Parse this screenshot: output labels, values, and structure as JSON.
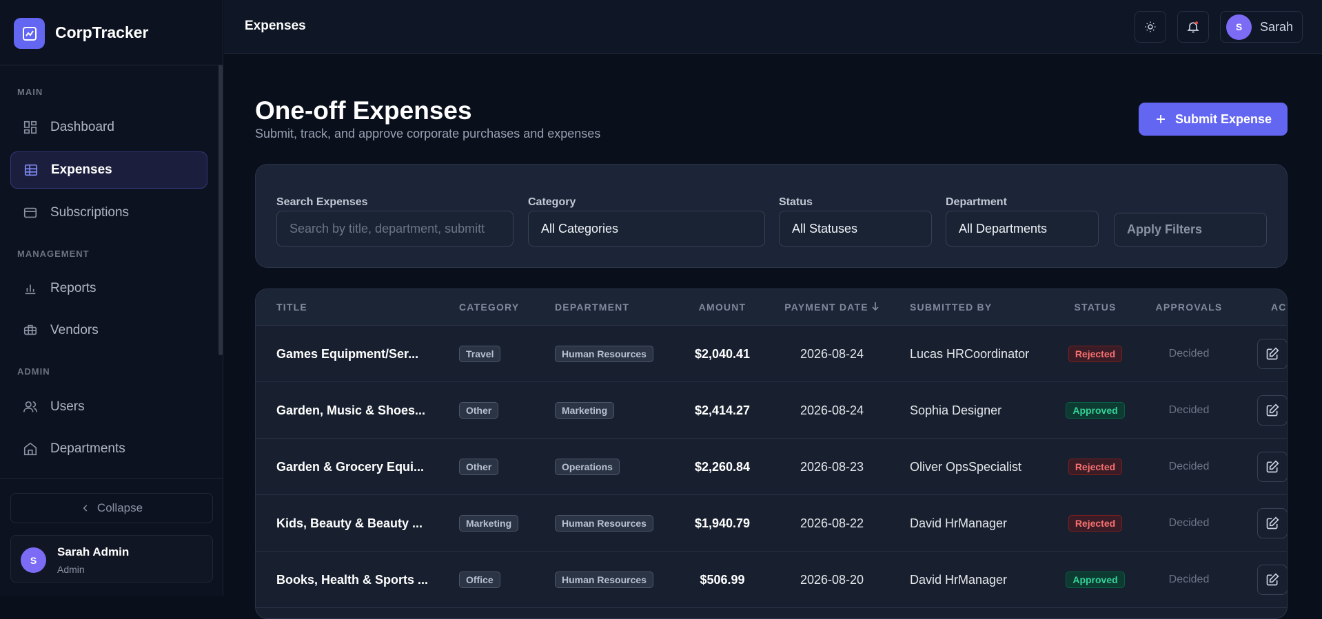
{
  "sidebar": {
    "brand": "CorpTracker",
    "sections": [
      {
        "label": "MAIN",
        "items": [
          "Dashboard",
          "Expenses",
          "Subscriptions"
        ]
      },
      {
        "label": "MANAGEMENT",
        "items": [
          "Reports",
          "Vendors"
        ]
      },
      {
        "label": "ADMIN",
        "items": [
          "Users",
          "Departments"
        ]
      }
    ],
    "collapse": "Collapse",
    "user": {
      "initial": "S",
      "name": "Sarah Admin",
      "role": "Admin"
    }
  },
  "topbar": {
    "title": "Expenses",
    "user": {
      "initial": "S",
      "name": "Sarah"
    }
  },
  "header": {
    "title": "One-off Expenses",
    "subtitle": "Submit, track, and approve corporate purchases and expenses",
    "button": "Submit Expense"
  },
  "filters": {
    "search_label": "Search Expenses",
    "search_placeholder": "Search by title, department, submitt",
    "category_label": "Category",
    "category": "All Categories",
    "status_label": "Status",
    "status": "All Statuses",
    "department_label": "Department",
    "department": "All Departments",
    "apply": "Apply Filters"
  },
  "table": {
    "columns": [
      "TITLE",
      "CATEGORY",
      "DEPARTMENT",
      "AMOUNT",
      "PAYMENT DATE",
      "SUBMITTED BY",
      "STATUS",
      "APPROVALS",
      "ACTIONS"
    ],
    "rows": [
      [
        "Games Equipment/Ser...",
        "Travel",
        "Human Resources",
        "$2,040.41",
        "2026-08-24",
        "Lucas HRCoordinator",
        "Rejected",
        "Decided"
      ],
      [
        "Garden, Music & Shoes...",
        "Other",
        "Marketing",
        "$2,414.27",
        "2026-08-24",
        "Sophia Designer",
        "Approved",
        "Decided"
      ],
      [
        "Garden & Grocery Equi...",
        "Other",
        "Operations",
        "$2,260.84",
        "2026-08-23",
        "Oliver OpsSpecialist",
        "Rejected",
        "Decided"
      ],
      [
        "Kids, Beauty & Beauty ...",
        "Marketing",
        "Human Resources",
        "$1,940.79",
        "2026-08-22",
        "David HrManager",
        "Rejected",
        "Decided"
      ],
      [
        "Books, Health & Sports ...",
        "Office",
        "Human Resources",
        "$506.99",
        "2026-08-20",
        "David HrManager",
        "Approved",
        "Decided"
      ]
    ]
  }
}
